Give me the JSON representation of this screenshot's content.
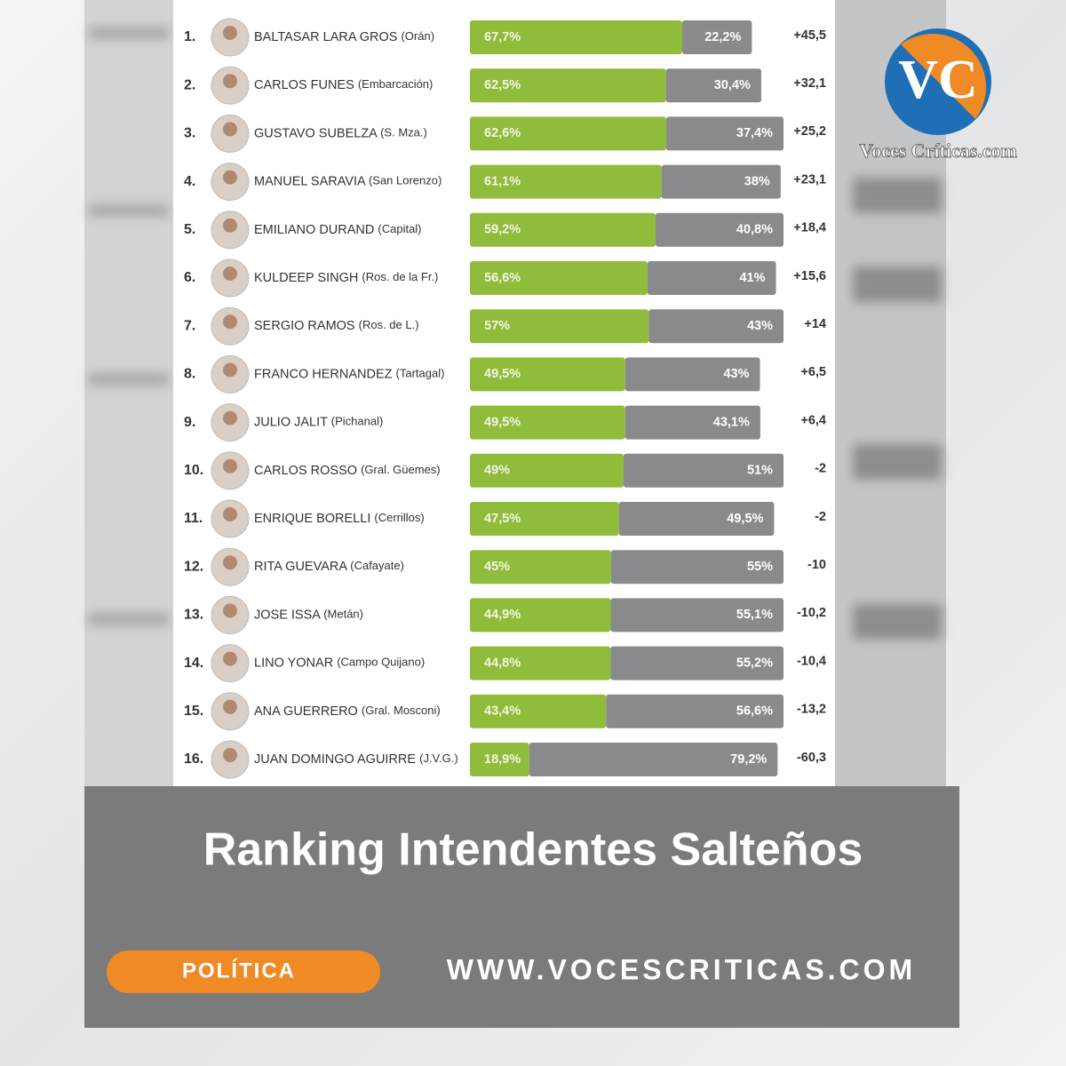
{
  "chart_data": {
    "type": "bar",
    "title": "Ranking Intendentes Salteños",
    "ranks": [
      "1.",
      "2.",
      "3.",
      "4.",
      "5.",
      "6.",
      "7.",
      "8.",
      "9.",
      "10.",
      "11.",
      "12.",
      "13.",
      "14.",
      "15.",
      "16."
    ],
    "categories": [
      "BALTASAR LARA GROS",
      "CARLOS FUNES",
      "GUSTAVO SUBELZA",
      "MANUEL SARAVIA",
      "EMILIANO DURAND",
      "KULDEEP SINGH",
      "SERGIO RAMOS",
      "FRANCO HERNANDEZ",
      "JULIO JALIT",
      "CARLOS ROSSO",
      "ENRIQUE BORELLI",
      "RITA GUEVARA",
      "JOSE ISSA",
      "LINO YONAR",
      "ANA GUERRERO",
      "JUAN DOMINGO AGUIRRE"
    ],
    "places": [
      "(Orán)",
      "(Embarcación)",
      "(S. Mza.)",
      "(San Lorenzo)",
      "(Capital)",
      "(Ros. de la Fr.)",
      "(Ros. de L.)",
      "(Tartagal)",
      "(Pichanal)",
      "(Gral. Güemes)",
      "(Cerrillos)",
      "(Cafayate)",
      "(Metán)",
      "(Campo Quijano)",
      "(Gral. Mosconi)",
      "(J.V.G.)"
    ],
    "series": [
      {
        "color": "#8fbc3b",
        "values": [
          67.7,
          62.5,
          62.6,
          61.1,
          59.2,
          56.6,
          57,
          49.5,
          49.5,
          49,
          47.5,
          45,
          44.9,
          44.8,
          43.4,
          18.9
        ],
        "value_labels": [
          "67,7%",
          "62,5%",
          "62,6%",
          "61,1%",
          "59,2%",
          "56,6%",
          "57%",
          "49,5%",
          "49,5%",
          "49%",
          "47,5%",
          "45%",
          "44,9%",
          "44,8%",
          "43,4%",
          "18,9%"
        ]
      },
      {
        "color": "#8a8a8c",
        "values": [
          22.2,
          30.4,
          37.4,
          38,
          40.8,
          41,
          43,
          43,
          43.1,
          51,
          49.5,
          55,
          55.1,
          55.2,
          56.6,
          79.2
        ],
        "value_labels": [
          "22,2%",
          "30,4%",
          "37,4%",
          "38%",
          "40,8%",
          "41%",
          "43%",
          "43%",
          "43,1%",
          "51%",
          "49,5%",
          "55%",
          "55,1%",
          "55,2%",
          "56,6%",
          "79,2%"
        ]
      }
    ],
    "differences": {
      "values": [
        45.5,
        32.1,
        25.2,
        23.1,
        18.4,
        15.6,
        14,
        6.5,
        6.4,
        -2,
        -2,
        -10,
        -10.2,
        -10.4,
        -13.2,
        -60.3
      ],
      "value_labels": [
        "+45,5",
        "+32,1",
        "+25,2",
        "+23,1",
        "+18,4",
        "+15,6",
        "+14",
        "+6,5",
        "+6,4",
        "-2",
        "-2",
        "-10",
        "-10,2",
        "-10,4",
        "-13,2",
        "-60,3"
      ]
    }
  },
  "page": {
    "logo": "VC",
    "brand": "Voces Críticas.com",
    "tag": "POLÍTICA",
    "url": "WWW.VOCESCRITICAS.COM"
  }
}
